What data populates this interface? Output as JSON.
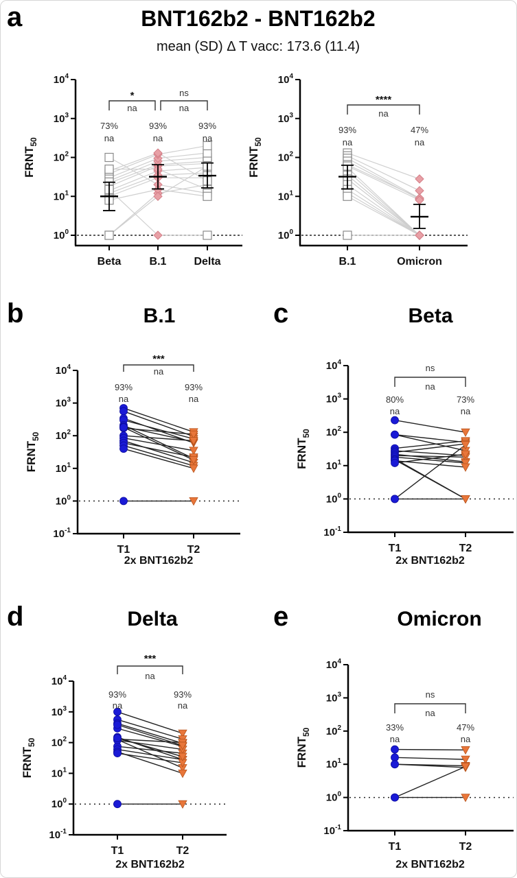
{
  "figure": {
    "colors": {
      "t1_marker": "#1a1ad6",
      "t2_marker": "#e8763a",
      "square_marker_edge": "#8a8a8a",
      "diamond_marker": "#e8a0a6",
      "diamond_edge": "#d47f88",
      "paired_line_dark": "#222222",
      "paired_line_light": "#cfcfcf",
      "axis": "#000000"
    }
  },
  "chart_data": [
    {
      "id": "a1",
      "panel_letter": "a",
      "title": "BNT162b2 - BNT162b2",
      "subtitle": "mean (SD) Δ T vacc: 173.6 (11.4)",
      "type": "scatter",
      "yscale": "log10",
      "ylabel": "FRNT",
      "ylabel_sub": "50",
      "ylim_exp": [
        0,
        4
      ],
      "yticks_exp": [
        0,
        1,
        2,
        3,
        4
      ],
      "xlabel": "",
      "categories": [
        "Beta",
        "B.1",
        "Delta"
      ],
      "marker_styles": [
        "square",
        "diamond",
        "square"
      ],
      "line_style": "light",
      "percent_labels": [
        "73%",
        "93%",
        "93%"
      ],
      "na_labels": [
        "na",
        "na",
        "na"
      ],
      "series": [
        {
          "name": "Beta",
          "values": [
            1,
            10,
            12,
            14,
            18,
            22,
            25,
            30,
            38,
            45,
            50,
            100,
            8,
            1,
            15
          ]
        },
        {
          "name": "B.1",
          "values": [
            12,
            30,
            35,
            45,
            60,
            65,
            80,
            95,
            120,
            130,
            50,
            20,
            15,
            10,
            1
          ]
        },
        {
          "name": "Delta",
          "values": [
            20,
            30,
            40,
            55,
            70,
            80,
            100,
            130,
            200,
            25,
            15,
            12,
            10,
            60,
            1
          ]
        }
      ],
      "pairs": [
        [
          0,
          1
        ],
        [
          1,
          2
        ]
      ],
      "summary": [
        {
          "center": 10,
          "low": 4.3,
          "high": 23
        },
        {
          "center": 32,
          "low": 15.5,
          "high": 65
        },
        {
          "center": 34,
          "low": 16.5,
          "high": 72
        }
      ],
      "brackets": [
        {
          "from": "Beta",
          "to": "B.1",
          "sig": "*",
          "label": "na"
        },
        {
          "from": "B.1",
          "to": "Delta",
          "sig": "ns",
          "label": "na"
        }
      ],
      "threshold": 1
    },
    {
      "id": "a2",
      "panel_letter": "",
      "title": "",
      "type": "scatter",
      "yscale": "log10",
      "ylabel": "FRNT",
      "ylabel_sub": "50",
      "ylim_exp": [
        0,
        4
      ],
      "yticks_exp": [
        0,
        1,
        2,
        3,
        4
      ],
      "xlabel": "",
      "categories": [
        "B.1",
        "Omicron"
      ],
      "marker_styles": [
        "square",
        "diamond"
      ],
      "line_style": "light",
      "percent_labels": [
        "93%",
        "47%"
      ],
      "na_labels": [
        "na",
        "na"
      ],
      "series": [
        {
          "name": "B.1",
          "values": [
            130,
            110,
            95,
            80,
            65,
            55,
            45,
            35,
            28,
            20,
            15,
            12,
            10,
            1,
            60
          ]
        },
        {
          "name": "Omicron",
          "values": [
            28,
            14,
            9,
            8.5,
            9,
            1,
            1,
            1,
            1,
            1,
            1,
            1,
            1,
            1,
            8
          ]
        }
      ],
      "pairs": [
        [
          0,
          1
        ]
      ],
      "summary": [
        {
          "center": 32,
          "low": 15.5,
          "high": 63
        },
        {
          "center": 3,
          "low": 1.5,
          "high": 6.2
        }
      ],
      "brackets": [
        {
          "from": "B.1",
          "to": "Omicron",
          "sig": "****",
          "label": "na"
        }
      ],
      "threshold": 1
    },
    {
      "id": "b",
      "panel_letter": "b",
      "title": "B.1",
      "type": "scatter",
      "yscale": "log10",
      "ylabel": "FRNT",
      "ylabel_sub": "50",
      "ylim_exp": [
        -1,
        4
      ],
      "yticks_exp": [
        -1,
        0,
        1,
        2,
        3,
        4
      ],
      "xlabel": "2x BNT162b2",
      "categories": [
        "T1",
        "T2"
      ],
      "marker_styles": [
        "circle",
        "triangle"
      ],
      "line_style": "dark",
      "percent_labels": [
        "93%",
        "93%"
      ],
      "na_labels": [
        "na",
        "na"
      ],
      "series": [
        {
          "name": "T1",
          "values": [
            700,
            560,
            340,
            300,
            210,
            190,
            170,
            100,
            85,
            70,
            60,
            50,
            40,
            1,
            180
          ]
        },
        {
          "name": "T2",
          "values": [
            130,
            95,
            60,
            80,
            20,
            65,
            110,
            70,
            35,
            15,
            22,
            12,
            10,
            1,
            18
          ]
        }
      ],
      "pairs": [
        [
          0,
          1
        ]
      ],
      "brackets": [
        {
          "from": "T1",
          "to": "T2",
          "sig": "***",
          "label": "na"
        }
      ],
      "threshold": 1
    },
    {
      "id": "c",
      "panel_letter": "c",
      "title": "Beta",
      "type": "scatter",
      "yscale": "log10",
      "ylabel": "FRNT",
      "ylabel_sub": "50",
      "ylim_exp": [
        -1,
        4
      ],
      "yticks_exp": [
        -1,
        0,
        1,
        2,
        3,
        4
      ],
      "xlabel": "2x BNT162b2",
      "categories": [
        "T1",
        "T2"
      ],
      "marker_styles": [
        "circle",
        "triangle"
      ],
      "line_style": "dark",
      "percent_labels": [
        "80%",
        "73%"
      ],
      "na_labels": [
        "na",
        "na"
      ],
      "series": [
        {
          "name": "T1",
          "values": [
            230,
            85,
            85,
            33,
            28,
            25,
            22,
            20,
            18,
            16,
            15,
            14,
            12,
            1,
            1
          ]
        },
        {
          "name": "T2",
          "values": [
            100,
            50,
            28,
            55,
            20,
            45,
            13,
            18,
            12,
            1,
            1,
            9,
            22,
            42,
            1
          ]
        }
      ],
      "pairs": [
        [
          0,
          1
        ]
      ],
      "brackets": [
        {
          "from": "T1",
          "to": "T2",
          "sig": "ns",
          "label": "na"
        }
      ],
      "threshold": 1
    },
    {
      "id": "d",
      "panel_letter": "d",
      "title": "Delta",
      "type": "scatter",
      "yscale": "log10",
      "ylabel": "FRNT",
      "ylabel_sub": "50",
      "ylim_exp": [
        -1,
        4
      ],
      "yticks_exp": [
        -1,
        0,
        1,
        2,
        3,
        4
      ],
      "xlabel": "2x BNT162b2",
      "categories": [
        "T1",
        "T2"
      ],
      "marker_styles": [
        "circle",
        "triangle"
      ],
      "line_style": "dark",
      "percent_labels": [
        "93%",
        "93%"
      ],
      "na_labels": [
        "na",
        "na"
      ],
      "series": [
        {
          "name": "T1",
          "values": [
            1000,
            560,
            420,
            290,
            150,
            130,
            125,
            75,
            60,
            50,
            45,
            120,
            140,
            1,
            380
          ]
        },
        {
          "name": "T2",
          "values": [
            200,
            130,
            95,
            75,
            28,
            100,
            15,
            45,
            28,
            10,
            22,
            60,
            35,
            1,
            80
          ]
        }
      ],
      "pairs": [
        [
          0,
          1
        ]
      ],
      "brackets": [
        {
          "from": "T1",
          "to": "T2",
          "sig": "***",
          "label": "na"
        }
      ],
      "threshold": 1
    },
    {
      "id": "e",
      "panel_letter": "e",
      "title": "Omicron",
      "type": "scatter",
      "yscale": "log10",
      "ylabel": "FRNT",
      "ylabel_sub": "50",
      "ylim_exp": [
        -1,
        4
      ],
      "yticks_exp": [
        -1,
        0,
        1,
        2,
        3,
        4
      ],
      "xlabel": "2x BNT162b2",
      "categories": [
        "T1",
        "T2"
      ],
      "marker_styles": [
        "circle",
        "triangle"
      ],
      "line_style": "dark",
      "percent_labels": [
        "33%",
        "47%"
      ],
      "na_labels": [
        "na",
        "na"
      ],
      "series": [
        {
          "name": "T1",
          "values": [
            28,
            16,
            10,
            10,
            1,
            1
          ]
        },
        {
          "name": "T2",
          "values": [
            27,
            14,
            9,
            8,
            8.5,
            1
          ]
        }
      ],
      "pairs": [
        [
          0,
          1
        ]
      ],
      "brackets": [
        {
          "from": "T1",
          "to": "T2",
          "sig": "ns",
          "label": "na"
        }
      ],
      "threshold": 1
    }
  ]
}
